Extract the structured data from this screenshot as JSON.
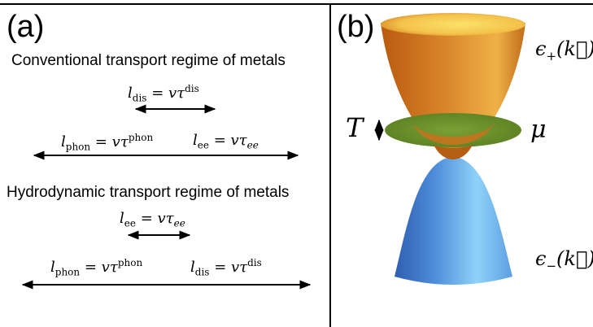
{
  "panel_a": {
    "label": "(a)",
    "conventional": {
      "heading": "Conventional transport regime of metals",
      "l_dis": {
        "lhs": "l",
        "lhs_sub": "dis",
        "rhs": "= vτ",
        "rhs_sup": "dis"
      },
      "l_phon": {
        "lhs": "l",
        "lhs_sub": "phon",
        "rhs": "= vτ",
        "rhs_sup": "phon"
      },
      "l_ee": {
        "lhs": "l",
        "lhs_sub": "ee",
        "rhs": "= vτ",
        "rhs_sub": "ee"
      }
    },
    "hydrodynamic": {
      "heading": "Hydrodynamic transport regime of metals",
      "l_ee": {
        "lhs": "l",
        "lhs_sub": "ee",
        "rhs": "= vτ",
        "rhs_sub": "ee"
      },
      "l_phon": {
        "lhs": "l",
        "lhs_sub": "phon",
        "rhs": "= vτ",
        "rhs_sup": "phon"
      },
      "l_dis": {
        "lhs": "l",
        "lhs_sub": "dis",
        "rhs": "= vτ",
        "rhs_sup": "dis"
      }
    }
  },
  "panel_b": {
    "label": "(b)",
    "upper_band": {
      "prefix": "ϵ",
      "sub": "+",
      "arg": "(k⃗)"
    },
    "lower_band": {
      "prefix": "ϵ",
      "sub": "−",
      "arg": "(k⃗)"
    },
    "temperature": "T",
    "chemical_potential": "μ",
    "colors": {
      "upper_cone": "#d9862a",
      "upper_cone_light": "#f6d04a",
      "lower_cone": "#6fb8f2",
      "lower_cone_dark": "#2f5fb0",
      "fermi_disk": "#6a8f2a"
    }
  }
}
